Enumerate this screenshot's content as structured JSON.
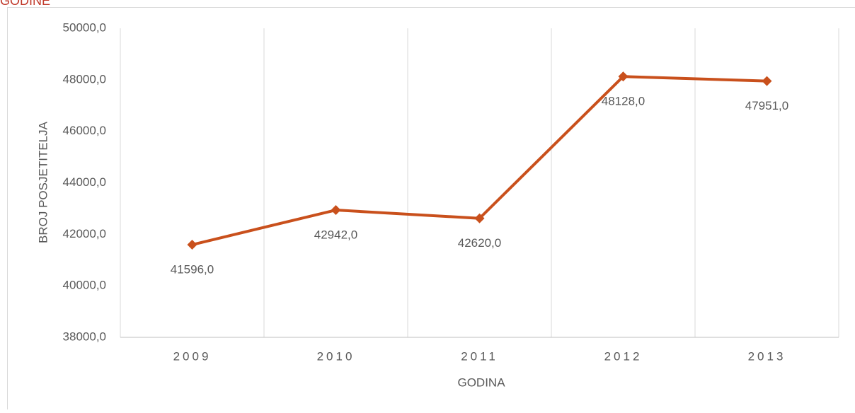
{
  "chart_data": {
    "type": "line",
    "title": "GODINE",
    "categories": [
      "2009",
      "2010",
      "2011",
      "2012",
      "2013"
    ],
    "series": [
      {
        "name": "BROJ POSJETITELJA",
        "color": "#c9501c",
        "values": [
          41596,
          42942,
          42620,
          48128,
          47951
        ],
        "value_labels": [
          "41596,0",
          "42942,0",
          "42620,0",
          "48128,0",
          "47951,0"
        ]
      }
    ],
    "ylim": [
      38000,
      50000
    ],
    "yticks": [
      {
        "value": 38000,
        "label": "38000,0"
      },
      {
        "value": 40000,
        "label": "40000,0"
      },
      {
        "value": 42000,
        "label": "42000,0"
      },
      {
        "value": 44000,
        "label": "44000,0"
      },
      {
        "value": 46000,
        "label": "46000,0"
      },
      {
        "value": 48000,
        "label": "48000,0"
      },
      {
        "value": 50000,
        "label": "50000,0"
      }
    ],
    "x_label": "GODINA",
    "y_label": "BROJ POSJETITELJA",
    "grid": true
  }
}
